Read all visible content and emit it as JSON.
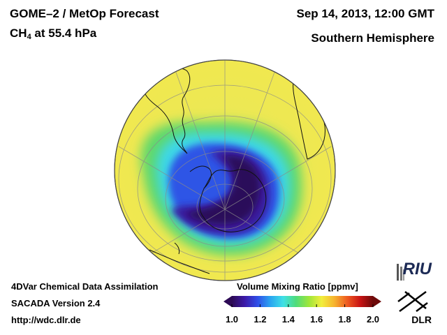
{
  "header": {
    "title": "GOME–2 / MetOp Forecast",
    "species": "CH",
    "species_sub": "4",
    "pressure": " at 55.4 hPa",
    "datetime": "Sep 14, 2013, 12:00 GMT",
    "hemisphere": "Southern Hemisphere"
  },
  "footer": {
    "line1": "4DVar Chemical Data Assimilation",
    "line2": "SACADA Version 2.4",
    "line3": "http://wdc.dlr.de"
  },
  "colorbar": {
    "title": "Volume Mixing Ratio [ppmv]",
    "min": 1.0,
    "max": 2.0,
    "ticks": [
      "1.0",
      "1.2",
      "1.4",
      "1.6",
      "1.8",
      "2.0"
    ],
    "colors": [
      "#2d0a55",
      "#3c1aa8",
      "#2f4ee8",
      "#2aa5f0",
      "#3fe0e6",
      "#4fdc7a",
      "#9ee63a",
      "#f2ee3c",
      "#f6b32e",
      "#ee5a20",
      "#c81414",
      "#6e0a0a"
    ]
  },
  "map": {
    "projection": "orthographic",
    "hemisphere": "south",
    "background_color": "#eceb5a"
  },
  "logos": {
    "riu": "RIU",
    "dlr": "DLR"
  }
}
